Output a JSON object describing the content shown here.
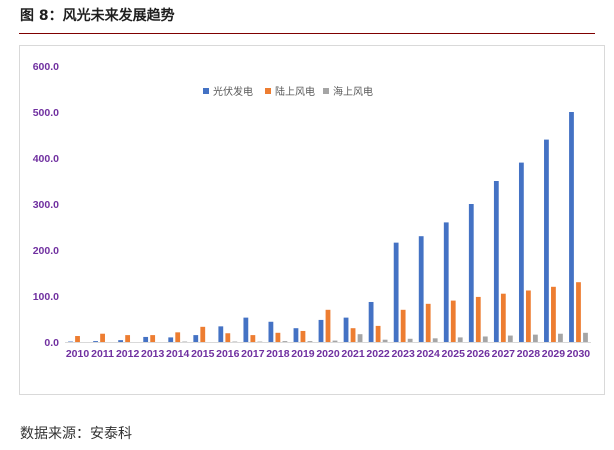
{
  "figure": {
    "title": "图 8：风光未来发展趋势",
    "source": "数据来源：安泰科"
  },
  "colors": {
    "title_rule": "#7f0000",
    "axis_label": "#7030a0",
    "grid": "#d9d9d9"
  },
  "chart_data": {
    "type": "bar",
    "categories": [
      "2010",
      "2011",
      "2012",
      "2013",
      "2014",
      "2015",
      "2016",
      "2017",
      "2018",
      "2019",
      "2020",
      "2021",
      "2022",
      "2023",
      "2024",
      "2025",
      "2026",
      "2027",
      "2028",
      "2029",
      "2030"
    ],
    "series": [
      {
        "name": "光伏发电",
        "color": "#4472c4",
        "values": [
          1,
          2,
          4,
          11,
          10,
          15,
          34,
          53,
          44,
          30,
          48,
          53,
          87,
          216,
          230,
          260,
          300,
          350,
          390,
          440,
          500
        ]
      },
      {
        "name": "陆上风电",
        "color": "#ed7d31",
        "values": [
          13,
          18,
          15,
          15,
          21,
          33,
          19,
          15,
          20,
          24,
          70,
          30,
          35,
          70,
          83,
          90,
          98,
          105,
          112,
          120,
          130
        ]
      },
      {
        "name": "海上风电",
        "color": "#a5a5a5",
        "values": [
          0,
          0,
          0,
          0,
          1,
          0,
          1,
          1,
          2,
          2,
          3,
          17,
          5,
          7,
          8,
          10,
          12,
          14,
          16,
          18,
          20
        ]
      }
    ],
    "yticks": [
      "0.0",
      "100.0",
      "200.0",
      "300.0",
      "400.0",
      "500.0",
      "600.0"
    ],
    "ylim": [
      0,
      600
    ],
    "grid": false,
    "legend_position": "top-center"
  }
}
